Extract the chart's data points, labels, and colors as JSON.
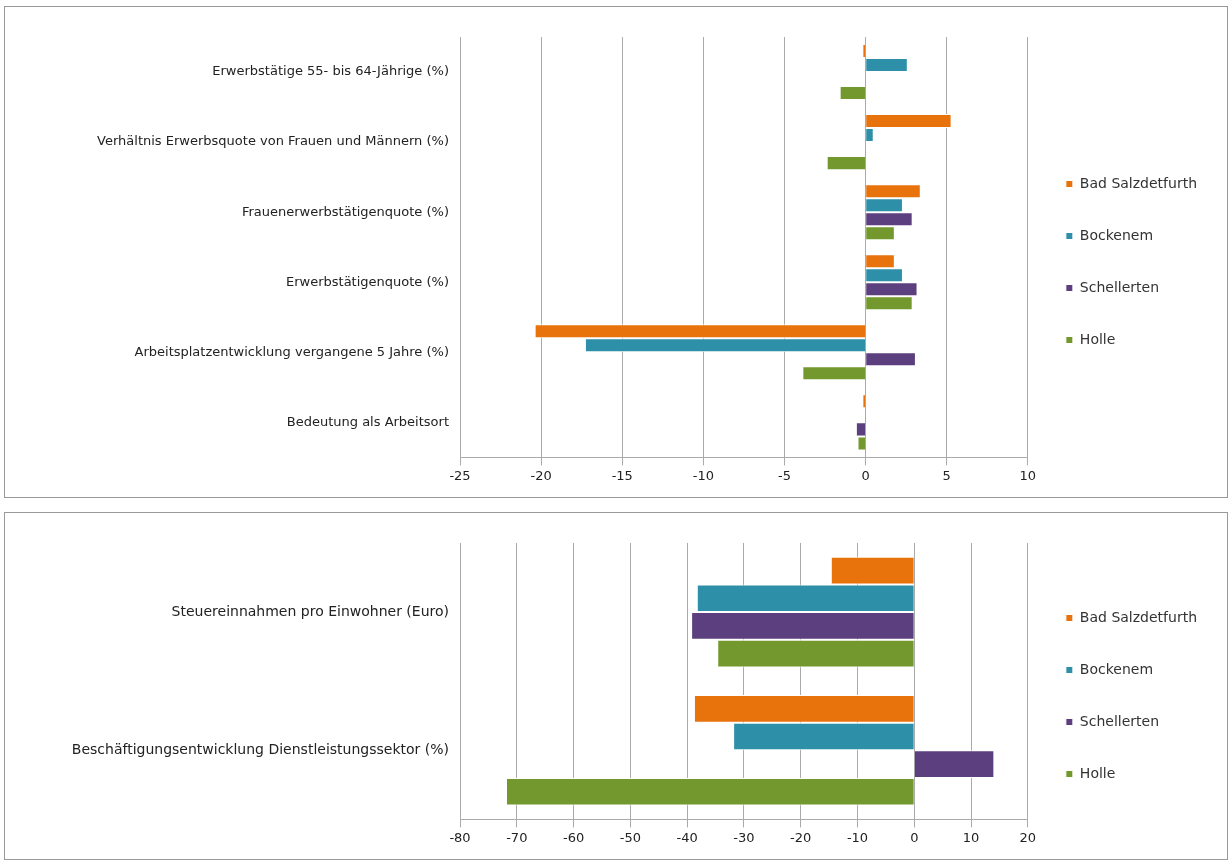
{
  "chart_data": [
    {
      "type": "bar",
      "orientation": "horizontal",
      "categories": [
        "Erwerbstätige 55- bis 64-Jährige (%)",
        "Verhältnis Erwerbsquote von Frauen und Männern (%)",
        "Frauenerwerbstätigenquote (%)",
        "Erwerbstätigenquote (%)",
        "Arbeitsplatzentwicklung vergangene 5 Jahre (%)",
        "Bedeutung als Arbeitsort"
      ],
      "series": [
        {
          "name": "Bad Salzdetfurth",
          "color": "#e8720c",
          "values": [
            -0.2,
            5.3,
            3.4,
            1.8,
            -20.4,
            -0.2
          ]
        },
        {
          "name": "Bockenem",
          "color": "#2e8fa8",
          "values": [
            2.6,
            0.5,
            2.3,
            2.3,
            -17.3,
            null
          ]
        },
        {
          "name": "Schellerten",
          "color": "#5b3f7f",
          "values": [
            null,
            null,
            2.9,
            3.2,
            3.1,
            -0.6
          ]
        },
        {
          "name": "Holle",
          "color": "#72982e",
          "values": [
            -1.6,
            -2.4,
            1.8,
            2.9,
            -3.9,
            -0.5
          ]
        }
      ],
      "xlim": [
        -25,
        10
      ],
      "xticks": [
        -25,
        -20,
        -15,
        -10,
        -5,
        0,
        5,
        10
      ],
      "grid": "x",
      "legend": "right"
    },
    {
      "type": "bar",
      "orientation": "horizontal",
      "categories": [
        "Steuereinnahmen pro Einwohner (Euro)",
        "Beschäftigungsentwicklung Dienstleistungssektor (%)"
      ],
      "series": [
        {
          "name": "Bad Salzdetfurth",
          "color": "#e8720c",
          "values": [
            -14.7,
            -38.8
          ]
        },
        {
          "name": "Bockenem",
          "color": "#2e8fa8",
          "values": [
            -38.3,
            -31.9
          ]
        },
        {
          "name": "Schellerten",
          "color": "#5b3f7f",
          "values": [
            -39.3,
            14.1
          ]
        },
        {
          "name": "Holle",
          "color": "#72982e",
          "values": [
            -34.7,
            -71.9
          ]
        }
      ],
      "xlim": [
        -80,
        20
      ],
      "xticks": [
        -80,
        -70,
        -60,
        -50,
        -40,
        -30,
        -20,
        -10,
        0,
        10,
        20
      ],
      "grid": "x",
      "legend": "right"
    }
  ]
}
